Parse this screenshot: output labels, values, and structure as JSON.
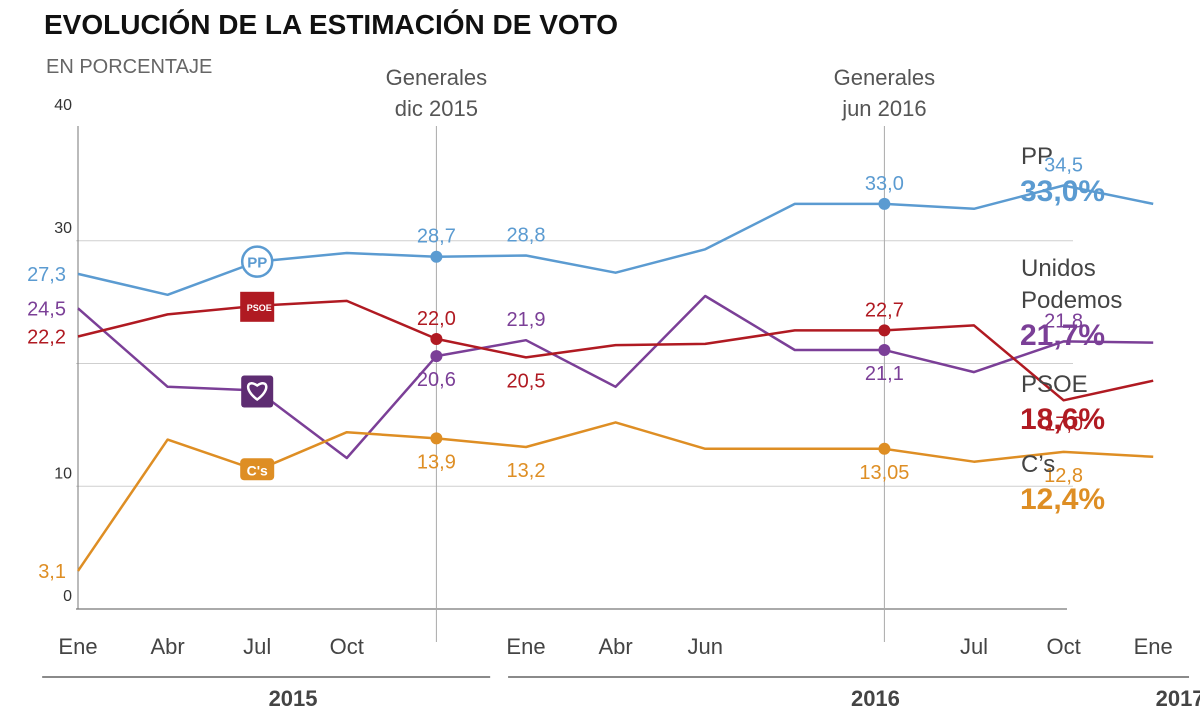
{
  "chart_data": {
    "type": "line",
    "title": "EVOLUCIÓN DE LA ESTIMACIÓN DE VOTO",
    "subtitle": "EN PORCENTAJE",
    "ylim": [
      0,
      40
    ],
    "yticks": [
      {
        "value": 0,
        "label": "0"
      },
      {
        "value": 10,
        "label": "10"
      },
      {
        "value": 30,
        "label": "30"
      },
      {
        "value": 40,
        "label": "40"
      }
    ],
    "gridlines": [
      10,
      20,
      30
    ],
    "x": [
      0,
      1,
      2,
      3,
      4,
      5,
      6,
      7,
      8,
      9,
      10,
      11,
      12
    ],
    "xticks": [
      {
        "x": 0,
        "label": "Ene"
      },
      {
        "x": 1,
        "label": "Abr"
      },
      {
        "x": 2,
        "label": "Jul"
      },
      {
        "x": 3,
        "label": "Oct"
      },
      {
        "x": 5,
        "label": "Ene"
      },
      {
        "x": 6,
        "label": "Abr"
      },
      {
        "x": 7,
        "label": "Jun"
      },
      {
        "x": 10,
        "label": "Jul"
      },
      {
        "x": 11,
        "label": "Oct"
      },
      {
        "x": 12,
        "label": "Ene"
      }
    ],
    "years": [
      {
        "label": "2015",
        "x_start": -0.4,
        "x_end": 4.6,
        "x_label": 2.4
      },
      {
        "label": "2016",
        "x_start": 4.8,
        "x_end": 12.4,
        "x_label": 8.9
      },
      {
        "label": "2017",
        "x_label": 12.3
      }
    ],
    "events": [
      {
        "x": 4,
        "line1": "Generales",
        "line2": "dic 2015"
      },
      {
        "x": 9,
        "line1": "Generales",
        "line2": "jun 2016"
      }
    ],
    "series": [
      {
        "name": "PP",
        "color": "#5b9bd1",
        "values": [
          27.3,
          25.6,
          28.3,
          29.0,
          28.7,
          28.8,
          27.4,
          29.3,
          33.0,
          33.0,
          32.6,
          34.5,
          33.0
        ],
        "markers": [
          4,
          9
        ],
        "labels": [
          {
            "i": 0,
            "text": "27,3",
            "pos": "left"
          },
          {
            "i": 4,
            "text": "28,7",
            "pos": "above"
          },
          {
            "i": 5,
            "text": "28,8",
            "pos": "above"
          },
          {
            "i": 9,
            "text": "33,0",
            "pos": "above"
          },
          {
            "i": 11,
            "text": "34,5",
            "pos": "above"
          }
        ],
        "legend_name": [
          "PP"
        ],
        "legend_value": "33,0%"
      },
      {
        "name": "Unidos Podemos",
        "color": "#7b3f97",
        "values": [
          24.5,
          18.1,
          17.8,
          12.3,
          20.6,
          21.9,
          18.1,
          25.5,
          21.1,
          21.1,
          19.3,
          21.8,
          21.7
        ],
        "markers": [
          4,
          9
        ],
        "labels": [
          {
            "i": 0,
            "text": "24,5",
            "pos": "left"
          },
          {
            "i": 4,
            "text": "20,6",
            "pos": "below"
          },
          {
            "i": 5,
            "text": "21,9",
            "pos": "above"
          },
          {
            "i": 9,
            "text": "21,1",
            "pos": "below"
          },
          {
            "i": 11,
            "text": "21,8",
            "pos": "above"
          }
        ],
        "legend_name": [
          "Unidos",
          "Podemos"
        ],
        "legend_value": "21,7%"
      },
      {
        "name": "PSOE",
        "color": "#b01a22",
        "values": [
          22.2,
          24.0,
          24.7,
          25.1,
          22.0,
          20.5,
          21.5,
          21.6,
          22.7,
          22.7,
          23.1,
          17.0,
          18.6
        ],
        "markers": [
          4,
          9
        ],
        "labels": [
          {
            "i": 0,
            "text": "22,2",
            "pos": "left"
          },
          {
            "i": 4,
            "text": "22,0",
            "pos": "above"
          },
          {
            "i": 5,
            "text": "20,5",
            "pos": "below"
          },
          {
            "i": 9,
            "text": "22,7",
            "pos": "above"
          },
          {
            "i": 11,
            "text": "17,0",
            "pos": "below"
          }
        ],
        "legend_name": [
          "PSOE"
        ],
        "legend_value": "18,6%"
      },
      {
        "name": "C's",
        "color": "#de8e24",
        "values": [
          3.1,
          13.8,
          11.3,
          14.4,
          13.9,
          13.2,
          15.2,
          13.05,
          13.05,
          13.05,
          12.0,
          12.8,
          12.4
        ],
        "markers": [
          4,
          9
        ],
        "labels": [
          {
            "i": 0,
            "text": "3,1",
            "pos": "left"
          },
          {
            "i": 4,
            "text": "13,9",
            "pos": "below"
          },
          {
            "i": 5,
            "text": "13,2",
            "pos": "below"
          },
          {
            "i": 9,
            "text": "13,05",
            "pos": "below"
          },
          {
            "i": 11,
            "text": "12,8",
            "pos": "below"
          }
        ],
        "legend_name": [
          "C’s"
        ],
        "legend_value": "12,4%"
      }
    ],
    "party_logos": [
      {
        "series": "PP",
        "i": 2,
        "text": "PP"
      },
      {
        "series": "PSOE",
        "i": 2,
        "text": "PSOE"
      },
      {
        "series": "Unidos Podemos",
        "i": 2,
        "text": ""
      },
      {
        "series": "C's",
        "i": 2,
        "text": "C's"
      }
    ]
  }
}
